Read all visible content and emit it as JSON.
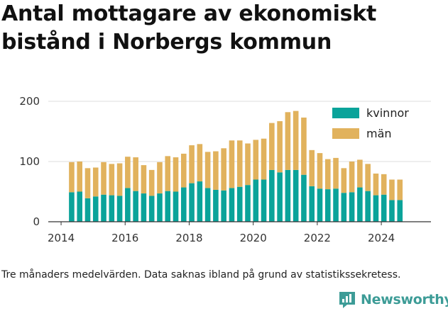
{
  "title_lines": [
    "Antal mottagare av ekonomiskt",
    "bistånd i Norbergs kommun"
  ],
  "caption": "Tre månaders medelvärden. Data saknas ibland på grund av statistikssekretess.",
  "logo": {
    "text": "Newsworthy",
    "icon": "bar-chart-badge-icon",
    "color": "#3d9c97"
  },
  "colors": {
    "kvinnor": "#0aa39a",
    "man": "#e1b25d",
    "axis": "#333333",
    "grid": "#dddddd"
  },
  "chart_data": {
    "type": "bar",
    "stacked": true,
    "title": "",
    "xlabel": "",
    "ylabel": "",
    "xlim": [
      2013.6,
      2025.55
    ],
    "ylim": [
      0,
      200
    ],
    "yticks": [
      0,
      100,
      200
    ],
    "xticks": [
      "2014",
      "2016",
      "2018",
      "2020",
      "2022",
      "2024"
    ],
    "legend_position": "top-right",
    "grid": "horizontal",
    "x": [
      2014.33,
      2014.58,
      2014.83,
      2015.08,
      2015.33,
      2015.58,
      2015.83,
      2016.08,
      2016.33,
      2016.58,
      2016.83,
      2017.08,
      2017.33,
      2017.58,
      2017.83,
      2018.08,
      2018.33,
      2018.58,
      2018.83,
      2019.08,
      2019.33,
      2019.58,
      2019.83,
      2020.08,
      2020.33,
      2020.58,
      2020.83,
      2021.08,
      2021.33,
      2021.58,
      2021.83,
      2022.08,
      2022.33,
      2022.58,
      2022.83,
      2023.08,
      2023.33,
      2023.58,
      2023.83,
      2024.08,
      2024.33,
      2024.58
    ],
    "series": [
      {
        "name": "kvinnor",
        "values": [
          49,
          50,
          39,
          42,
          45,
          44,
          43,
          56,
          51,
          47,
          43,
          47,
          51,
          50,
          57,
          64,
          67,
          56,
          53,
          52,
          56,
          58,
          61,
          70,
          70,
          86,
          82,
          86,
          86,
          78,
          59,
          55,
          54,
          55,
          48,
          49,
          57,
          51,
          44,
          45,
          36,
          36
        ]
      },
      {
        "name": "män",
        "values": [
          50,
          50,
          50,
          48,
          54,
          52,
          54,
          52,
          56,
          47,
          43,
          52,
          58,
          57,
          56,
          63,
          62,
          60,
          64,
          70,
          79,
          77,
          69,
          66,
          68,
          78,
          85,
          96,
          98,
          95,
          60,
          59,
          50,
          51,
          41,
          51,
          46,
          45,
          36,
          34,
          34,
          34
        ]
      }
    ]
  }
}
